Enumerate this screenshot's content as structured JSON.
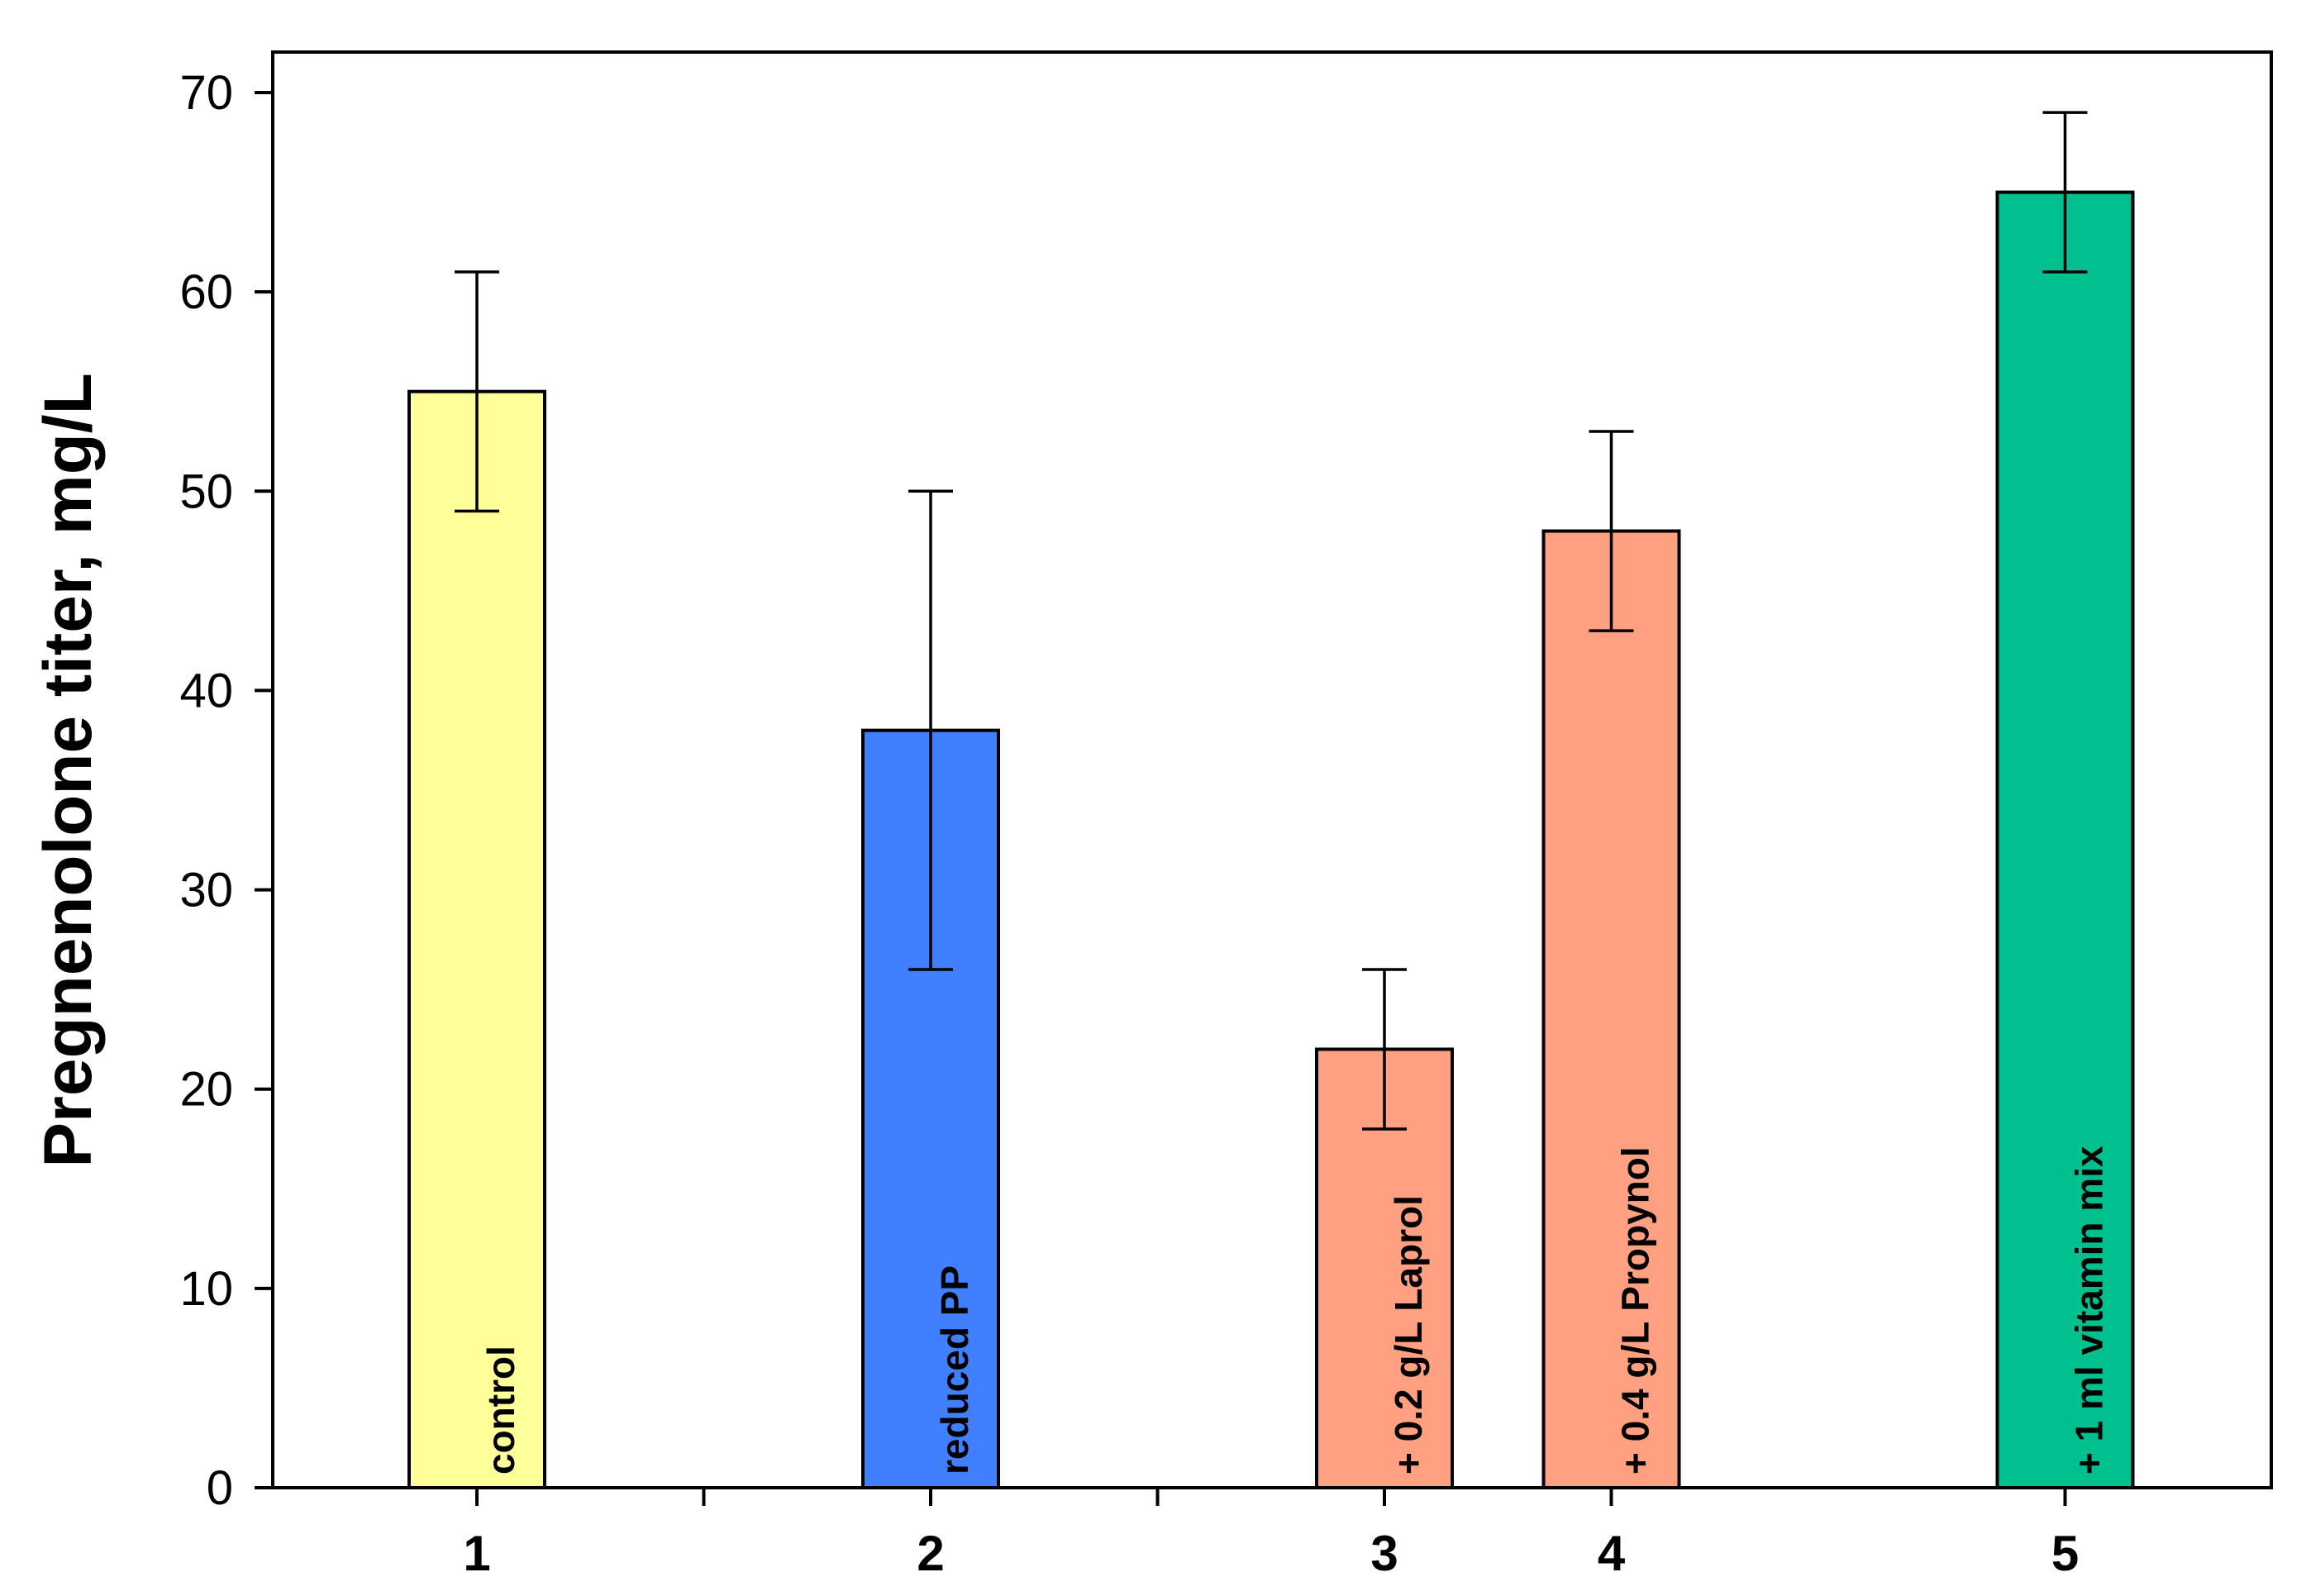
{
  "chart_data": {
    "type": "bar",
    "ylabel": "Pregnenolone titer, mg/L",
    "xlabel": "",
    "ylim": [
      0,
      72
    ],
    "yticks": [
      0,
      10,
      20,
      30,
      40,
      50,
      60,
      70
    ],
    "xlim": [
      0,
      8.85
    ],
    "xticks_minor": [
      2,
      4,
      6,
      8
    ],
    "grid": false,
    "bars": [
      {
        "category": "1",
        "x": 1,
        "value": 55,
        "err_low": 49,
        "err_high": 61,
        "annotation": "control",
        "color": "#ffff99"
      },
      {
        "category": "2",
        "x": 3,
        "value": 38,
        "err_low": 26,
        "err_high": 50,
        "annotation": "reduced PP",
        "color": "#4080ff"
      },
      {
        "category": "3",
        "x": 5,
        "value": 22,
        "err_low": 18,
        "err_high": 26,
        "annotation": "+ 0.2 g/L Laprol",
        "color": "#ffa080"
      },
      {
        "category": "4",
        "x": 6,
        "value": 48,
        "err_low": 43,
        "err_high": 53,
        "annotation": "+ 0.4 g/L Propynol",
        "color": "#ffa080"
      },
      {
        "category": "5",
        "x": 8,
        "value": 65,
        "err_low": 61,
        "err_high": 69,
        "annotation": "+ 1 ml vitamin mix",
        "color": "#00c090"
      }
    ]
  }
}
